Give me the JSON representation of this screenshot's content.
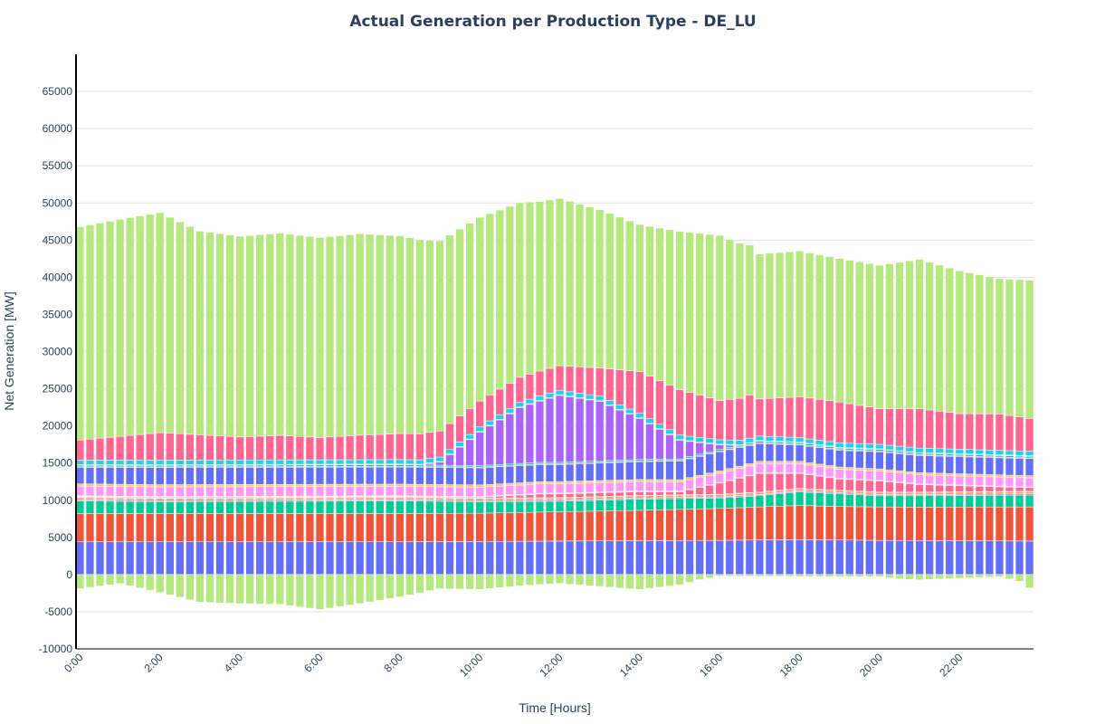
{
  "chart_data": {
    "type": "bar",
    "stacked": true,
    "title": "Actual Generation per Production Type - DE_LU",
    "xlabel": "Time [Hours]",
    "ylabel": "Net Generation [MW]",
    "ylim": [
      -10000,
      70000
    ],
    "yticks": [
      -10000,
      -5000,
      0,
      5000,
      10000,
      15000,
      20000,
      25000,
      30000,
      35000,
      40000,
      45000,
      50000,
      55000,
      60000,
      65000
    ],
    "xlim_hours": [
      -0.1,
      23.85
    ],
    "xticks": [
      "0:00",
      "2:00",
      "4:00",
      "6:00",
      "8:00",
      "10:00",
      "12:00",
      "14:00",
      "16:00",
      "18:00",
      "20:00",
      "22:00"
    ],
    "interval_minutes": 15,
    "grid": true,
    "legend": "none",
    "series": [
      {
        "color": "#636efa",
        "keyframes": [
          [
            0,
            4400
          ],
          [
            8,
            4400
          ],
          [
            16,
            4600
          ],
          [
            18,
            4700
          ],
          [
            20,
            4600
          ],
          [
            23.75,
            4500
          ]
        ]
      },
      {
        "color": "#ef553b",
        "keyframes": [
          [
            0,
            3800
          ],
          [
            10,
            3800
          ],
          [
            14,
            4100
          ],
          [
            16,
            4300
          ],
          [
            18,
            4600
          ],
          [
            19,
            4500
          ],
          [
            21,
            4500
          ],
          [
            23.75,
            4600
          ]
        ]
      },
      {
        "color": "#00cc96",
        "keyframes": [
          [
            0,
            1700
          ],
          [
            2,
            1600
          ],
          [
            8,
            1700
          ],
          [
            12,
            1400
          ],
          [
            14,
            1500
          ],
          [
            16,
            1400
          ],
          [
            17,
            1500
          ],
          [
            18,
            1800
          ],
          [
            19,
            1700
          ],
          [
            20,
            1500
          ],
          [
            23.75,
            1600
          ]
        ]
      },
      {
        "color": "#ab63fa",
        "keyframes": [
          [
            0,
            150
          ],
          [
            23.75,
            150
          ]
        ]
      },
      {
        "color": "#ffa15a",
        "keyframes": [
          [
            0,
            300
          ],
          [
            23.75,
            300
          ]
        ]
      },
      {
        "color": "#19d3f3",
        "keyframes": [
          [
            0,
            50
          ],
          [
            23.75,
            50
          ]
        ]
      },
      {
        "color": "#ff6692",
        "keyframes": [
          [
            0,
            100
          ],
          [
            10,
            100
          ],
          [
            11.5,
            500
          ],
          [
            14,
            500
          ],
          [
            15,
            400
          ],
          [
            16,
            1500
          ],
          [
            17,
            2500
          ],
          [
            18,
            2000
          ],
          [
            19,
            1500
          ],
          [
            20,
            1500
          ],
          [
            21,
            1000
          ],
          [
            23.75,
            500
          ]
        ]
      },
      {
        "color": "#b6e880",
        "keyframes": [
          [
            0,
            100
          ],
          [
            23.75,
            100
          ]
        ]
      },
      {
        "color": "#ff97ff",
        "keyframes": [
          [
            0,
            1300
          ],
          [
            23.75,
            1200
          ]
        ]
      },
      {
        "color": "#fecb52",
        "keyframes": [
          [
            0,
            300
          ],
          [
            23.75,
            300
          ]
        ]
      },
      {
        "color": "#636efa",
        "keyframes": [
          [
            0,
            2200
          ],
          [
            2,
            2300
          ],
          [
            8,
            2300
          ],
          [
            12,
            2300
          ],
          [
            14,
            2400
          ],
          [
            16,
            2600
          ],
          [
            18,
            2200
          ],
          [
            20,
            2300
          ],
          [
            22,
            2300
          ],
          [
            23.75,
            2300
          ]
        ]
      },
      {
        "color": "#ef553b",
        "keyframes": [
          [
            0,
            100
          ],
          [
            23.75,
            100
          ]
        ]
      },
      {
        "color": "#00cc96",
        "keyframes": [
          [
            0,
            200
          ],
          [
            23.75,
            200
          ]
        ]
      },
      {
        "color": "#ab63fa",
        "keyframes": [
          [
            0,
            0
          ],
          [
            8.5,
            0
          ],
          [
            9,
            400
          ],
          [
            10,
            4500
          ],
          [
            11,
            7500
          ],
          [
            12,
            9000
          ],
          [
            13,
            8000
          ],
          [
            14,
            5500
          ],
          [
            15,
            2500
          ],
          [
            16,
            600
          ],
          [
            16.5,
            0
          ],
          [
            23.75,
            0
          ]
        ]
      },
      {
        "color": "#ffa15a",
        "keyframes": [
          [
            0,
            100
          ],
          [
            23.75,
            100
          ]
        ]
      },
      {
        "color": "#19d3f3",
        "keyframes": [
          [
            0,
            600
          ],
          [
            23.75,
            600
          ]
        ]
      },
      {
        "color": "#ff6692",
        "keyframes": [
          [
            0,
            2700
          ],
          [
            1,
            3200
          ],
          [
            2,
            3700
          ],
          [
            3,
            3400
          ],
          [
            4,
            3100
          ],
          [
            5,
            3300
          ],
          [
            6,
            3000
          ],
          [
            7,
            3300
          ],
          [
            8,
            3500
          ],
          [
            9,
            3500
          ],
          [
            10,
            3500
          ],
          [
            11,
            3400
          ],
          [
            12,
            3300
          ],
          [
            13,
            3800
          ],
          [
            14,
            5600
          ],
          [
            15,
            6100
          ],
          [
            16,
            5300
          ],
          [
            16.75,
            5800
          ],
          [
            17,
            5000
          ],
          [
            18,
            5500
          ],
          [
            19,
            5500
          ],
          [
            20,
            4800
          ],
          [
            21,
            5300
          ],
          [
            22,
            4800
          ],
          [
            23,
            4900
          ],
          [
            23.75,
            4400
          ]
        ]
      },
      {
        "color": "#b6e880",
        "keyframes": [
          [
            0,
            28700
          ],
          [
            1,
            29200
          ],
          [
            2,
            29600
          ],
          [
            3,
            27400
          ],
          [
            4,
            27000
          ],
          [
            5,
            27200
          ],
          [
            6,
            26900
          ],
          [
            7,
            27100
          ],
          [
            8,
            26600
          ],
          [
            9,
            25600
          ],
          [
            10,
            24700
          ],
          [
            11,
            23500
          ],
          [
            11.5,
            22800
          ],
          [
            12,
            22500
          ],
          [
            13,
            21300
          ],
          [
            14,
            19800
          ],
          [
            15,
            21300
          ],
          [
            16,
            22200
          ],
          [
            17,
            19500
          ],
          [
            18,
            19600
          ],
          [
            19,
            19300
          ],
          [
            20,
            19300
          ],
          [
            21,
            20100
          ],
          [
            22,
            19200
          ],
          [
            23,
            18200
          ],
          [
            23.75,
            18600
          ]
        ]
      },
      {
        "color": "#b6e880",
        "keyframes": [
          [
            0,
            -1900
          ],
          [
            1,
            -1200
          ],
          [
            2,
            -2400
          ],
          [
            3,
            -3700
          ],
          [
            4,
            -3900
          ],
          [
            5,
            -4000
          ],
          [
            6,
            -4700
          ],
          [
            7,
            -3900
          ],
          [
            8,
            -3000
          ],
          [
            9,
            -1900
          ],
          [
            10,
            -2000
          ],
          [
            11,
            -1500
          ],
          [
            12,
            -1200
          ],
          [
            13,
            -1600
          ],
          [
            14,
            -2000
          ],
          [
            15,
            -1400
          ],
          [
            15.5,
            -700
          ],
          [
            16,
            -200
          ],
          [
            19,
            -300
          ],
          [
            20,
            -300
          ],
          [
            20.5,
            -600
          ],
          [
            21,
            -700
          ],
          [
            22,
            -500
          ],
          [
            23,
            -300
          ],
          [
            23.5,
            -900
          ],
          [
            23.75,
            -1800
          ]
        ]
      }
    ]
  }
}
